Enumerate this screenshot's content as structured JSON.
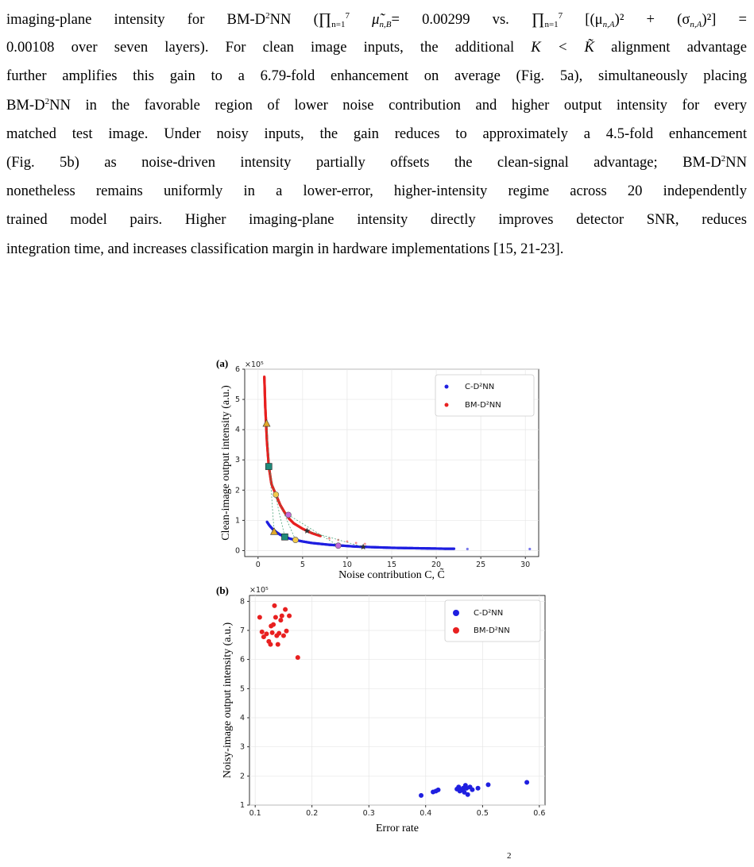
{
  "paragraph": {
    "line1_a": "imaging-plane intensity for BM-D",
    "line1_b": "NN (",
    "line1_eq1": "∏",
    "line1_eq1_lim": "7",
    "line1_eq1_sub": "n=1",
    "line1_eq1_term": "μ̃",
    "line1_eq1_termsub": "n,B",
    "line1_eq1_val": "= 0.00299",
    "line1_vs": "vs.",
    "line1_eq2": "∏",
    "line1_eq2_lim": "7",
    "line1_eq2_sub": "n=1",
    "line1_eq2_body": "[(μ",
    "line1_eq2_mu_sub": "n,A",
    "line1_eq2_mid": ")² + (σ",
    "line1_eq2_sig_sub": "n,A",
    "line1_eq2_end": ")²] =",
    "line2_a": "0.00108 over seven layers). For clean image inputs, the additional",
    "line2_k": "K < K̃",
    "line2_b": "alignment advantage",
    "line3": "further amplifies this gain to a 6.79-fold enhancement on average (Fig. 5a), simultaneously placing",
    "line4_a": "BM-D",
    "line4_b": "NN in the favorable region of lower noise contribution and higher output intensity for every",
    "line5": "matched test image. Under noisy inputs, the gain reduces to approximately a 4.5-fold enhancement",
    "line6_a": "(Fig. 5b) as noise-driven intensity partially offsets the clean-signal advantage; BM-D",
    "line6_b": "NN",
    "line7": "nonetheless remains uniformly in a lower-error, higher-intensity regime across 20 independently",
    "line8": "trained model pairs. Higher imaging-plane intensity directly improves detector SNR, reduces",
    "line9": "integration time, and increases classification margin in hardware implementations [15, 21-23].",
    "sup2": "2"
  },
  "figure": {
    "panel_a": {
      "label": "(a)",
      "multiplier": "×10⁵",
      "xlabel": "Noise contribution C, C̃",
      "ylabel": "Clean-image output intensity (a.u.)",
      "legend": [
        "C-D²NN",
        "BM-D²NN"
      ],
      "xticks": [
        "0",
        "5",
        "10",
        "15",
        "20",
        "25",
        "30"
      ],
      "yticks": [
        "0",
        "1",
        "2",
        "3",
        "4",
        "5",
        "6"
      ]
    },
    "panel_b": {
      "label": "(b)",
      "multiplier": "×10⁵",
      "xlabel": "Error rate",
      "ylabel": "Noisy-image output intensity (a.u.)",
      "legend": [
        "C-D²NN",
        "BM-D²NN"
      ],
      "xticks": [
        "0.1",
        "0.2",
        "0.3",
        "0.4",
        "0.5",
        "0.6"
      ],
      "yticks": [
        "1",
        "2",
        "3",
        "4",
        "5",
        "6",
        "7",
        "8"
      ]
    },
    "caption_fragment": "2"
  },
  "colors": {
    "c_d2nn": "#1f1fe0",
    "bm_d2nn": "#e82020"
  },
  "chart_data": [
    {
      "type": "scatter",
      "title": "",
      "xlabel": "Noise contribution C, C̃",
      "ylabel": "Clean-image output intensity (a.u.)",
      "xlim": [
        -1.5,
        31.5
      ],
      "ylim": [
        -0.2,
        6.0
      ],
      "y_multiplier": "×10⁵",
      "grid": true,
      "legend_position": "top-right",
      "series": [
        {
          "name": "C-D²NN",
          "points": [
            [
              1.0,
              0.95
            ],
            [
              1.3,
              0.82
            ],
            [
              1.6,
              0.72
            ],
            [
              2.0,
              0.62
            ],
            [
              2.5,
              0.52
            ],
            [
              3.0,
              0.46
            ],
            [
              3.5,
              0.4
            ],
            [
              4.0,
              0.36
            ],
            [
              5.0,
              0.3
            ],
            [
              6.0,
              0.25
            ],
            [
              7.0,
              0.22
            ],
            [
              8.0,
              0.19
            ],
            [
              9.0,
              0.17
            ],
            [
              10.0,
              0.15
            ],
            [
              11.0,
              0.13
            ],
            [
              12.0,
              0.12
            ],
            [
              13.0,
              0.11
            ],
            [
              14.0,
              0.1
            ],
            [
              15.0,
              0.09
            ],
            [
              16.0,
              0.085
            ],
            [
              17.0,
              0.08
            ],
            [
              18.0,
              0.075
            ],
            [
              19.0,
              0.07
            ],
            [
              20.0,
              0.065
            ],
            [
              21.0,
              0.06
            ],
            [
              22.0,
              0.06
            ],
            [
              23.5,
              0.05
            ],
            [
              30.5,
              0.05
            ]
          ]
        },
        {
          "name": "BM-D²NN",
          "points": [
            [
              0.7,
              5.75
            ],
            [
              0.75,
              5.3
            ],
            [
              0.8,
              4.8
            ],
            [
              0.9,
              4.2
            ],
            [
              1.0,
              3.6
            ],
            [
              1.2,
              2.8
            ],
            [
              1.5,
              2.2
            ],
            [
              2.0,
              1.85
            ],
            [
              2.5,
              1.5
            ],
            [
              3.0,
              1.25
            ],
            [
              3.5,
              1.05
            ],
            [
              4.0,
              0.9
            ],
            [
              5.0,
              0.72
            ],
            [
              5.5,
              0.65
            ],
            [
              6.0,
              0.58
            ],
            [
              7.0,
              0.48
            ],
            [
              8.0,
              0.4
            ],
            [
              9.0,
              0.35
            ],
            [
              10.0,
              0.3
            ],
            [
              11.0,
              0.25
            ],
            [
              12.0,
              0.22
            ]
          ]
        }
      ]
    },
    {
      "type": "scatter",
      "title": "",
      "xlabel": "Error rate",
      "ylabel": "Noisy-image output intensity (a.u.)",
      "xlim": [
        0.09,
        0.61
      ],
      "ylim": [
        1.0,
        8.2
      ],
      "y_multiplier": "×10⁵",
      "grid": true,
      "legend_position": "top-right",
      "series": [
        {
          "name": "C-D²NN",
          "points": [
            [
              0.392,
              1.33
            ],
            [
              0.413,
              1.45
            ],
            [
              0.418,
              1.48
            ],
            [
              0.422,
              1.52
            ],
            [
              0.455,
              1.55
            ],
            [
              0.458,
              1.62
            ],
            [
              0.46,
              1.48
            ],
            [
              0.463,
              1.52
            ],
            [
              0.466,
              1.58
            ],
            [
              0.468,
              1.44
            ],
            [
              0.47,
              1.68
            ],
            [
              0.472,
              1.58
            ],
            [
              0.474,
              1.36
            ],
            [
              0.478,
              1.62
            ],
            [
              0.482,
              1.53
            ],
            [
              0.492,
              1.58
            ],
            [
              0.51,
              1.7
            ],
            [
              0.578,
              1.78
            ]
          ]
        },
        {
          "name": "BM-D²NN",
          "points": [
            [
              0.108,
              7.45
            ],
            [
              0.112,
              6.95
            ],
            [
              0.115,
              6.78
            ],
            [
              0.12,
              6.88
            ],
            [
              0.124,
              6.62
            ],
            [
              0.127,
              6.52
            ],
            [
              0.128,
              7.15
            ],
            [
              0.13,
              6.92
            ],
            [
              0.132,
              7.2
            ],
            [
              0.134,
              7.85
            ],
            [
              0.136,
              7.45
            ],
            [
              0.138,
              6.82
            ],
            [
              0.14,
              6.52
            ],
            [
              0.142,
              6.9
            ],
            [
              0.145,
              7.35
            ],
            [
              0.147,
              7.5
            ],
            [
              0.15,
              6.82
            ],
            [
              0.153,
              7.72
            ],
            [
              0.155,
              6.98
            ],
            [
              0.16,
              7.5
            ],
            [
              0.175,
              6.07
            ]
          ]
        }
      ]
    }
  ]
}
